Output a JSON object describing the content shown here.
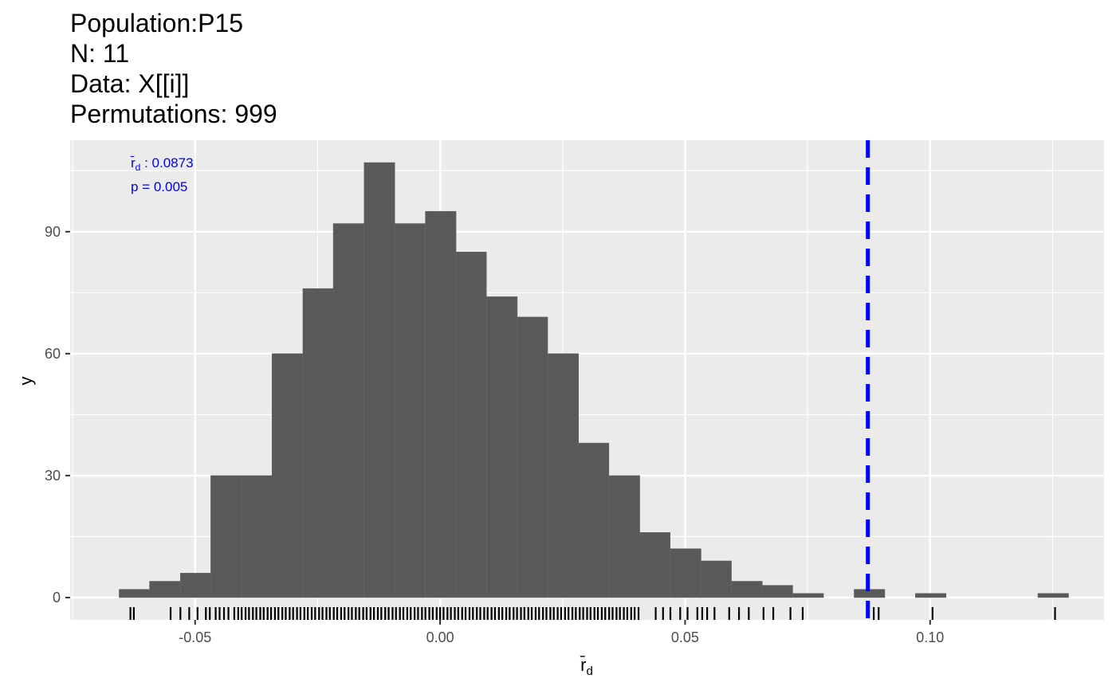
{
  "title_lines": [
    "Population:P15",
    "N: 11",
    "Data: X[[i]]",
    "Permutations: 999"
  ],
  "colors": {
    "panel": "#EBEBEB",
    "grid": "#FFFFFF",
    "bar": "#595959",
    "observed": "#0000FF",
    "axis_text": "#4D4D4D"
  },
  "chart_data": {
    "type": "bar",
    "subtype": "histogram",
    "xlabel": "r̄d",
    "ylabel": "y",
    "xlim": [
      -0.0755,
      0.1355
    ],
    "ylim": [
      -5.5,
      112.5
    ],
    "x_ticks": [
      -0.05,
      0.0,
      0.05,
      0.1
    ],
    "x_tick_labels": [
      "-0.05",
      "0.00",
      "0.05",
      "0.10"
    ],
    "y_ticks": [
      0,
      30,
      60,
      90
    ],
    "y_tick_labels": [
      "0",
      "30",
      "60",
      "90"
    ],
    "grid": true,
    "bin_width": 0.00625,
    "bins": [
      {
        "x0": -0.0655,
        "count": 2
      },
      {
        "x0": -0.0593,
        "count": 4
      },
      {
        "x0": -0.053,
        "count": 6
      },
      {
        "x0": -0.0468,
        "count": 30
      },
      {
        "x0": -0.0405,
        "count": 30
      },
      {
        "x0": -0.0343,
        "count": 60
      },
      {
        "x0": -0.028,
        "count": 76
      },
      {
        "x0": -0.0218,
        "count": 92
      },
      {
        "x0": -0.0155,
        "count": 107
      },
      {
        "x0": -0.0093,
        "count": 92
      },
      {
        "x0": -0.003,
        "count": 95
      },
      {
        "x0": 0.0032,
        "count": 85
      },
      {
        "x0": 0.0095,
        "count": 74
      },
      {
        "x0": 0.0157,
        "count": 69
      },
      {
        "x0": 0.022,
        "count": 60
      },
      {
        "x0": 0.0282,
        "count": 38
      },
      {
        "x0": 0.0345,
        "count": 30
      },
      {
        "x0": 0.0407,
        "count": 16
      },
      {
        "x0": 0.047,
        "count": 12
      },
      {
        "x0": 0.0532,
        "count": 9
      },
      {
        "x0": 0.0595,
        "count": 4
      },
      {
        "x0": 0.0657,
        "count": 3
      },
      {
        "x0": 0.072,
        "count": 1
      },
      {
        "x0": 0.0845,
        "count": 2
      },
      {
        "x0": 0.097,
        "count": 1
      },
      {
        "x0": 0.122,
        "count": 1
      }
    ],
    "rug": [
      -0.0632,
      -0.0625,
      -0.055,
      -0.053,
      -0.0512,
      -0.0495,
      -0.0478,
      -0.047,
      -0.0458,
      -0.045,
      -0.0441,
      -0.0432,
      -0.042,
      -0.0412,
      -0.0405,
      -0.0397,
      -0.039,
      -0.0382,
      -0.0375,
      -0.0367,
      -0.036,
      -0.0352,
      -0.0345,
      -0.0337,
      -0.033,
      -0.0322,
      -0.0315,
      -0.0307,
      -0.03,
      -0.0292,
      -0.0285,
      -0.0277,
      -0.027,
      -0.0262,
      -0.0255,
      -0.0247,
      -0.024,
      -0.0232,
      -0.0225,
      -0.0217,
      -0.021,
      -0.0202,
      -0.0195,
      -0.0187,
      -0.018,
      -0.0172,
      -0.0165,
      -0.0157,
      -0.015,
      -0.0142,
      -0.0135,
      -0.0127,
      -0.012,
      -0.0112,
      -0.0105,
      -0.0097,
      -0.009,
      -0.0082,
      -0.0075,
      -0.0067,
      -0.006,
      -0.0052,
      -0.0045,
      -0.0037,
      -0.003,
      -0.0022,
      -0.0015,
      -0.0007,
      0.0,
      0.0007,
      0.0015,
      0.0022,
      0.003,
      0.0037,
      0.0045,
      0.0052,
      0.006,
      0.0067,
      0.0075,
      0.0082,
      0.009,
      0.0097,
      0.0105,
      0.0112,
      0.012,
      0.0127,
      0.0135,
      0.0142,
      0.015,
      0.0157,
      0.0165,
      0.0172,
      0.018,
      0.0187,
      0.0195,
      0.0202,
      0.021,
      0.0217,
      0.0225,
      0.0232,
      0.024,
      0.0247,
      0.0255,
      0.0262,
      0.027,
      0.0277,
      0.0285,
      0.0292,
      0.03,
      0.0307,
      0.0315,
      0.0322,
      0.033,
      0.0337,
      0.0345,
      0.0352,
      0.036,
      0.0367,
      0.0375,
      0.0382,
      0.039,
      0.0397,
      0.0405,
      0.044,
      0.0455,
      0.047,
      0.049,
      0.0505,
      0.0525,
      0.0535,
      0.0545,
      0.056,
      0.059,
      0.061,
      0.063,
      0.066,
      0.068,
      0.0715,
      0.074,
      0.0885,
      0.0895,
      0.1005,
      0.1255
    ],
    "observed_line": {
      "x": 0.0873,
      "style": "dashed"
    },
    "annotation": {
      "stat_symbol": "r̄d",
      "value": "0.0873",
      "p_text": "p = 0.005"
    }
  }
}
